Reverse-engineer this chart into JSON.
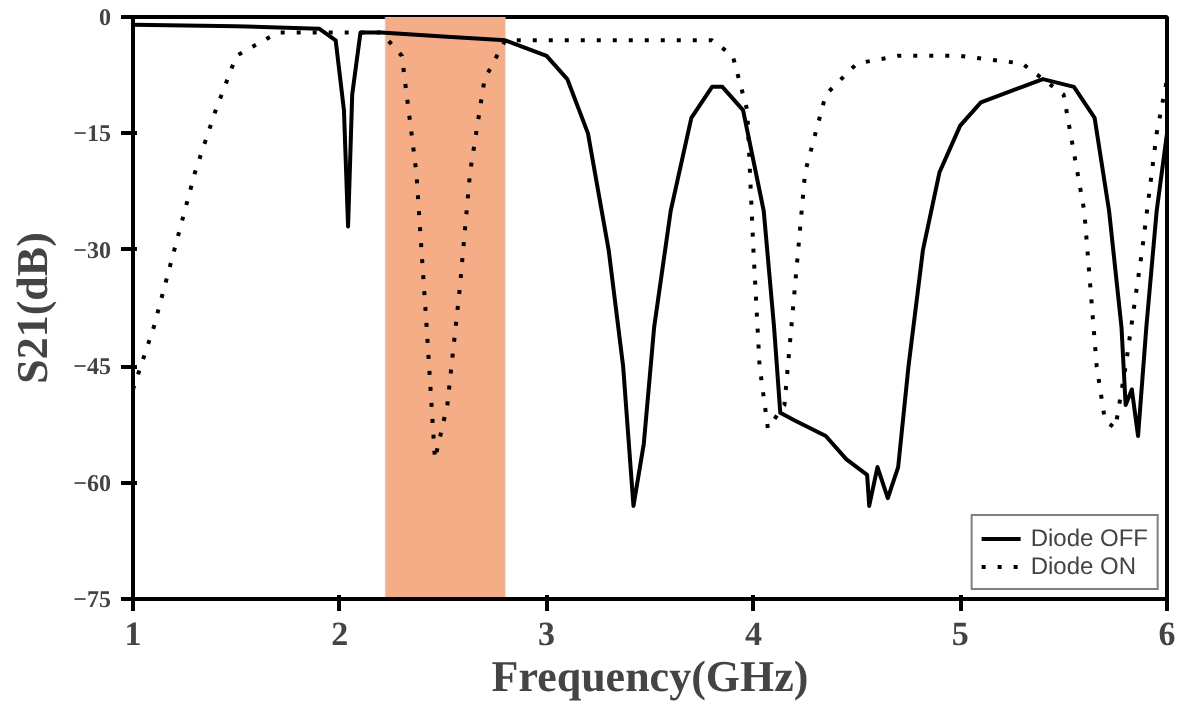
{
  "chart_data": {
    "type": "line",
    "xlabel": "Frequency(GHz)",
    "ylabel": "S21(dB)",
    "xlim": [
      1,
      6
    ],
    "ylim": [
      -75,
      0
    ],
    "xticks": [
      1,
      2,
      3,
      4,
      5,
      6
    ],
    "yticks": [
      -75,
      -60,
      -45,
      -30,
      -15,
      0
    ],
    "grid": false,
    "legend": "bottom right",
    "bands": [
      {
        "axis": "x",
        "from": 2.22,
        "to": 2.8,
        "color": "#f4ad86"
      }
    ],
    "series": [
      {
        "name": "Diode OFF",
        "color": "#000000",
        "line_style": "solid",
        "x": [
          1.0,
          1.5,
          1.9,
          1.98,
          2.02,
          2.04,
          2.06,
          2.1,
          2.2,
          2.5,
          2.8,
          3.0,
          3.1,
          3.2,
          3.3,
          3.37,
          3.42,
          3.47,
          3.52,
          3.6,
          3.7,
          3.8,
          3.85,
          3.95,
          4.05,
          4.1,
          4.13,
          4.2,
          4.35,
          4.45,
          4.5,
          4.55,
          4.56,
          4.6,
          4.65,
          4.7,
          4.75,
          4.82,
          4.9,
          5.0,
          5.1,
          5.3,
          5.4,
          5.55,
          5.65,
          5.72,
          5.78,
          5.8,
          5.83,
          5.86,
          5.9,
          5.95,
          6.0
        ],
        "values": [
          -1,
          -1.2,
          -1.5,
          -3,
          -12,
          -27,
          -10,
          -2,
          -2,
          -2.5,
          -3,
          -5,
          -8,
          -15,
          -30,
          -45,
          -63,
          -55,
          -40,
          -25,
          -13,
          -9,
          -9,
          -12,
          -25,
          -40,
          -51,
          -52,
          -54,
          -57,
          -58,
          -59,
          -63,
          -58,
          -62,
          -58,
          -45,
          -30,
          -20,
          -14,
          -11,
          -9,
          -8,
          -9,
          -13,
          -25,
          -40,
          -50,
          -48,
          -54,
          -40,
          -25,
          -15
        ]
      },
      {
        "name": "Diode ON",
        "color": "#000000",
        "line_style": "dotted",
        "x": [
          1.0,
          1.1,
          1.2,
          1.3,
          1.4,
          1.5,
          1.7,
          2.2,
          2.3,
          2.37,
          2.42,
          2.46,
          2.52,
          2.58,
          2.63,
          2.7,
          2.8,
          3.5,
          3.8,
          3.9,
          3.97,
          4.0,
          4.03,
          4.07,
          4.15,
          4.2,
          4.25,
          4.35,
          4.5,
          4.7,
          5.0,
          5.3,
          5.5,
          5.6,
          5.66,
          5.7,
          5.75,
          5.8,
          5.88,
          5.95,
          6.0
        ],
        "values": [
          -48,
          -40,
          -30,
          -20,
          -12,
          -5,
          -2,
          -2,
          -5,
          -20,
          -40,
          -57,
          -50,
          -35,
          -20,
          -8,
          -3,
          -3,
          -3,
          -5,
          -12,
          -30,
          -45,
          -53,
          -50,
          -35,
          -20,
          -10,
          -6,
          -5,
          -5,
          -6,
          -10,
          -25,
          -45,
          -52,
          -53,
          -45,
          -30,
          -15,
          -8
        ]
      }
    ]
  }
}
